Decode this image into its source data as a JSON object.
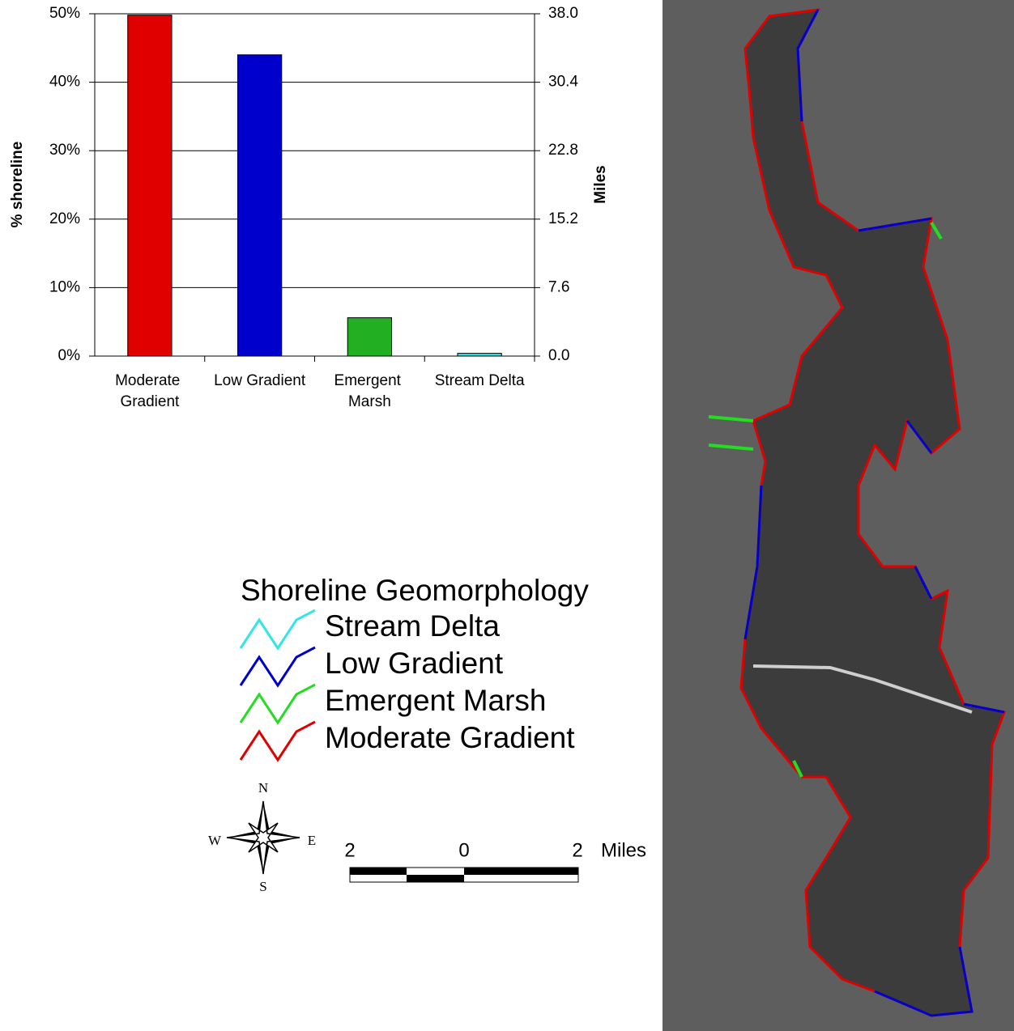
{
  "chart_data": {
    "type": "bar",
    "categories": [
      "Moderate Gradient",
      "Low Gradient",
      "Emergent Marsh",
      "Stream Delta"
    ],
    "values": [
      49.8,
      44,
      5.6,
      0.4
    ],
    "colors": [
      "#e00000",
      "#0000cc",
      "#22b022",
      "#33e6e6"
    ],
    "ylabel": "% shoreline",
    "y2label": "Miles",
    "ylim": [
      0,
      50
    ],
    "yticks": [
      {
        "value": 0,
        "label": "0%"
      },
      {
        "value": 10,
        "label": "10%"
      },
      {
        "value": 20,
        "label": "20%"
      },
      {
        "value": 30,
        "label": "30%"
      },
      {
        "value": 40,
        "label": "40%"
      },
      {
        "value": 50,
        "label": "50%"
      }
    ],
    "y2lim": [
      0,
      38
    ],
    "y2ticks": [
      {
        "value": 0,
        "label": "0.0"
      },
      7.6,
      15.2,
      22.8,
      30.4,
      {
        "value": 38,
        "label": "38.0"
      }
    ],
    "grid": true
  },
  "legend": {
    "title": "Shoreline Geomorphology",
    "items": [
      {
        "label": "Stream Delta",
        "color": "#33e6e6"
      },
      {
        "label": "Low Gradient",
        "color": "#0000cc"
      },
      {
        "label": "Emergent Marsh",
        "color": "#22dd22"
      },
      {
        "label": "Moderate Gradient",
        "color": "#e00000"
      }
    ]
  },
  "compass": {
    "north": "N",
    "south": "S",
    "east": "E",
    "west": "W"
  },
  "scale_bar": {
    "labels": [
      "2",
      "0",
      "2"
    ],
    "unit": "Miles"
  }
}
